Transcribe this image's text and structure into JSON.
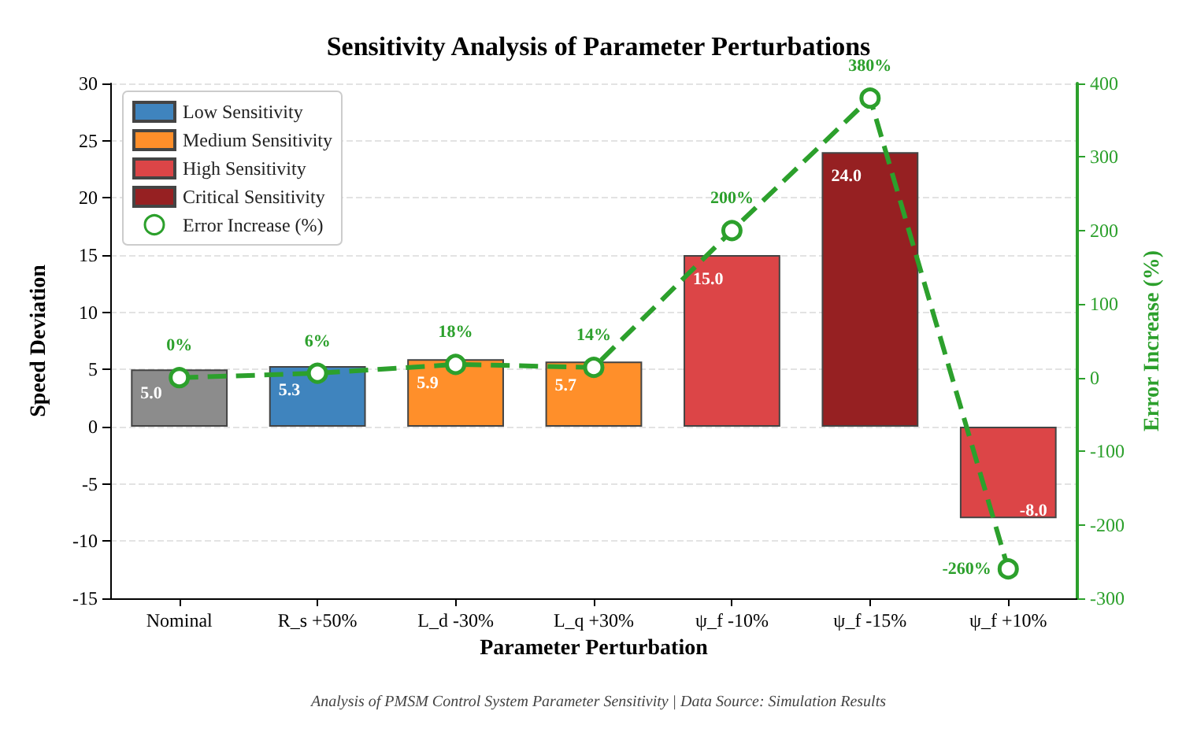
{
  "chart_data": {
    "type": "bar",
    "title": "Sensitivity Analysis of Parameter Perturbations",
    "xlabel": "Parameter Perturbation",
    "ylabel": "Speed Deviation",
    "y2label": "Error Increase (%)",
    "categories": [
      "Nominal",
      "R_s +50%",
      "L_d -30%",
      "L_q +30%",
      "ψ_f -10%",
      "ψ_f -15%",
      "ψ_f +10%"
    ],
    "stacked": true,
    "series": [
      {
        "color": "#8c8c8c",
        "values": [
          5.0,
          null,
          null,
          null,
          null,
          null,
          null
        ],
        "value_labels": [
          "5.0",
          null,
          null,
          null,
          null,
          null,
          null
        ]
      },
      {
        "name": "Low Sensitivity",
        "color": "#3f84be",
        "values": [
          null,
          5.3,
          null,
          null,
          null,
          null,
          null
        ],
        "value_labels": [
          null,
          "5.3",
          null,
          null,
          null,
          null,
          null
        ]
      },
      {
        "name": "Medium Sensitivity",
        "color": "#ff8f2a",
        "values": [
          null,
          null,
          5.9,
          5.7,
          null,
          null,
          null
        ],
        "value_labels": [
          null,
          null,
          "5.9",
          "5.7",
          null,
          null,
          null
        ]
      },
      {
        "name": "High Sensitivity",
        "color": "#dc4547",
        "values": [
          null,
          null,
          null,
          null,
          15.0,
          null,
          -8.0
        ],
        "value_labels": [
          null,
          null,
          null,
          null,
          "15.0",
          null,
          "-8.0"
        ]
      },
      {
        "name": "Critical Sensitivity",
        "color": "#962022",
        "values": [
          null,
          null,
          null,
          null,
          null,
          24.0,
          null
        ],
        "value_labels": [
          null,
          null,
          null,
          null,
          null,
          "24.0",
          null
        ]
      },
      {
        "name": "Error Increase (%)",
        "type": "line",
        "axis": "y2",
        "color": "#2ca02c",
        "marker": "circle",
        "line_style": "dashed",
        "values": [
          0,
          6,
          18,
          14,
          200,
          380,
          -260
        ],
        "value_labels": [
          "0%",
          "6%",
          "18%",
          "14%",
          "200%",
          "380%",
          "-260%"
        ]
      }
    ],
    "ylim": [
      -15,
      30
    ],
    "yticks": [
      -15,
      -10,
      -5,
      0,
      5,
      10,
      15,
      20,
      25,
      30
    ],
    "y2lim": [
      -300,
      400
    ],
    "y2ticks": [
      -300,
      -200,
      -100,
      0,
      100,
      200,
      300,
      400
    ],
    "grid": "y",
    "legend": "top left",
    "annotations": [
      "Analysis of PMSM Control System Parameter Sensitivity | Data Source: Simulation Results"
    ]
  }
}
